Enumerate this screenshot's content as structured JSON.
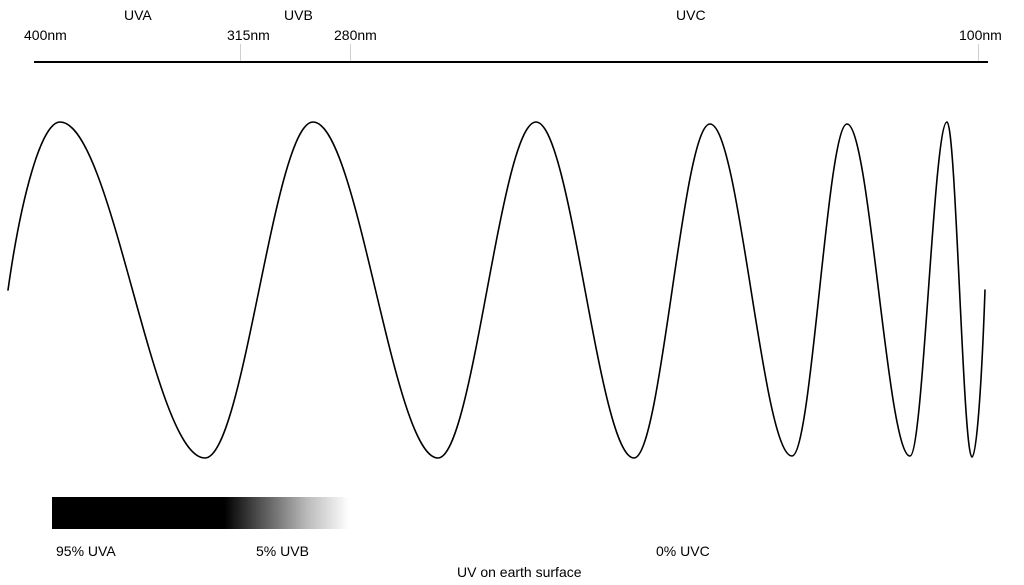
{
  "bands": {
    "uva": "UVA",
    "uvb": "UVB",
    "uvc": "UVC"
  },
  "wavelengths": {
    "w400": "400nm",
    "w315": "315nm",
    "w280": "280nm",
    "w100": "100nm"
  },
  "surface": {
    "uva_share": "95% UVA",
    "uvb_share": "5% UVB",
    "uvc_share": "0% UVC",
    "caption": "UV on earth surface"
  },
  "colors": {
    "line": "#000000",
    "bar_dark": "#000000",
    "bar_light": "#ffffff"
  }
}
